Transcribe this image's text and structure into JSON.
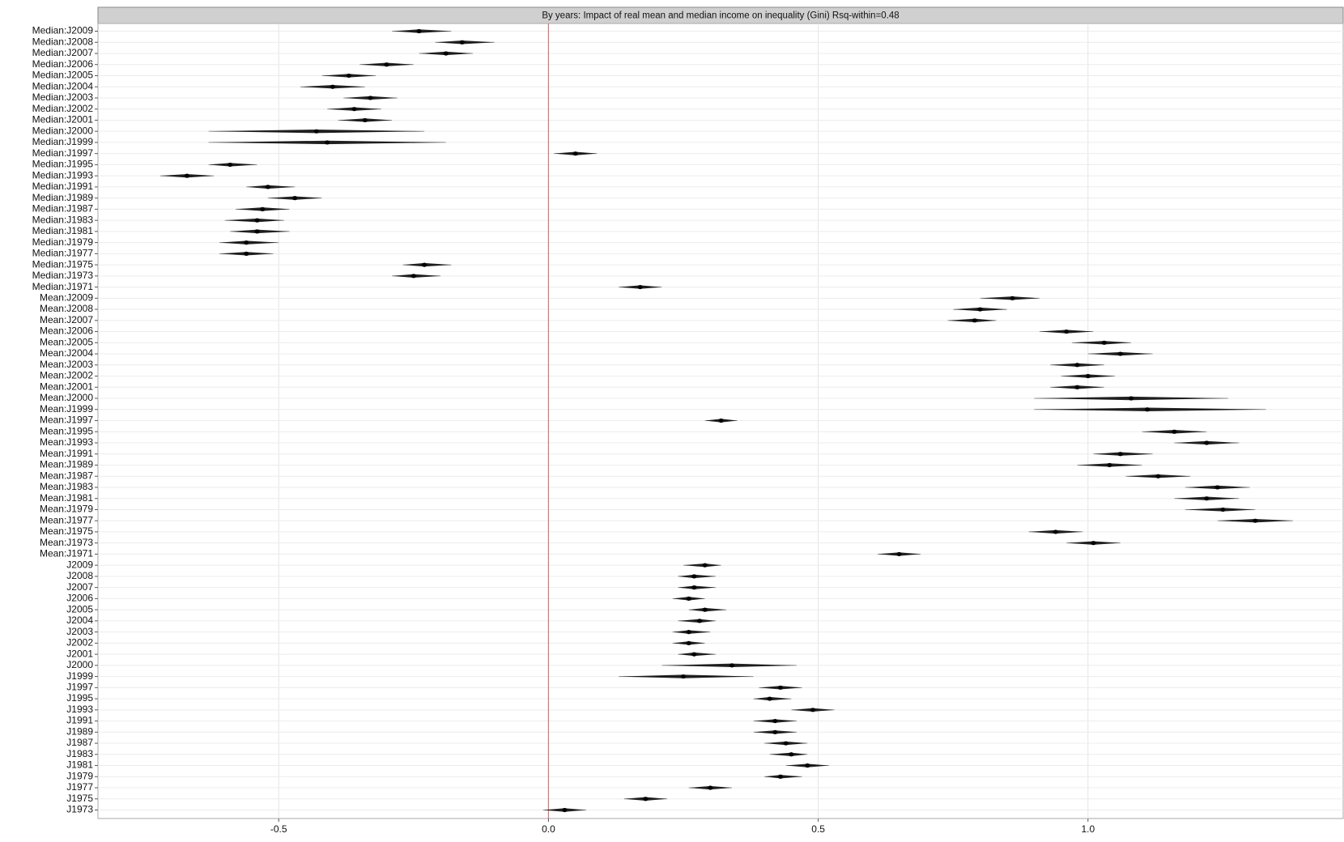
{
  "chart_data": {
    "type": "forest",
    "title": "By years: Impact of real mean and median income on inequality (Gini) Rsq-within=0.48",
    "categories": [
      "Median:J2009",
      "Median:J2008",
      "Median:J2007",
      "Median:J2006",
      "Median:J2005",
      "Median:J2004",
      "Median:J2003",
      "Median:J2002",
      "Median:J2001",
      "Median:J2000",
      "Median:J1999",
      "Median:J1997",
      "Median:J1995",
      "Median:J1993",
      "Median:J1991",
      "Median:J1989",
      "Median:J1987",
      "Median:J1983",
      "Median:J1981",
      "Median:J1979",
      "Median:J1977",
      "Median:J1975",
      "Median:J1973",
      "Median:J1971",
      "Mean:J2009",
      "Mean:J2008",
      "Mean:J2007",
      "Mean:J2006",
      "Mean:J2005",
      "Mean:J2004",
      "Mean:J2003",
      "Mean:J2002",
      "Mean:J2001",
      "Mean:J2000",
      "Mean:J1999",
      "Mean:J1997",
      "Mean:J1995",
      "Mean:J1993",
      "Mean:J1991",
      "Mean:J1989",
      "Mean:J1987",
      "Mean:J1983",
      "Mean:J1981",
      "Mean:J1979",
      "Mean:J1977",
      "Mean:J1975",
      "Mean:J1973",
      "Mean:J1971",
      "J2009",
      "J2008",
      "J2007",
      "J2006",
      "J2005",
      "J2004",
      "J2003",
      "J2002",
      "J2001",
      "J2000",
      "J1999",
      "J1997",
      "J1995",
      "J1993",
      "J1991",
      "J1989",
      "J1987",
      "J1983",
      "J1981",
      "J1979",
      "J1977",
      "J1975",
      "J1973"
    ],
    "values": [
      -0.24,
      -0.16,
      -0.19,
      -0.3,
      -0.37,
      -0.4,
      -0.33,
      -0.36,
      -0.34,
      -0.43,
      -0.41,
      0.05,
      -0.59,
      -0.67,
      -0.52,
      -0.47,
      -0.53,
      -0.54,
      -0.54,
      -0.56,
      -0.56,
      -0.23,
      -0.25,
      0.17,
      0.86,
      0.8,
      0.79,
      0.96,
      1.03,
      1.06,
      0.98,
      1.0,
      0.98,
      1.08,
      1.11,
      0.32,
      1.16,
      1.22,
      1.06,
      1.04,
      1.13,
      1.24,
      1.22,
      1.25,
      1.31,
      0.94,
      1.01,
      0.65,
      0.29,
      0.27,
      0.27,
      0.26,
      0.29,
      0.28,
      0.26,
      0.26,
      0.27,
      0.34,
      0.25,
      0.43,
      0.41,
      0.49,
      0.42,
      0.42,
      0.44,
      0.45,
      0.48,
      0.43,
      0.3,
      0.18,
      0.03
    ],
    "lower": [
      -0.29,
      -0.21,
      -0.24,
      -0.35,
      -0.42,
      -0.46,
      -0.38,
      -0.41,
      -0.39,
      -0.63,
      -0.63,
      0.01,
      -0.63,
      -0.72,
      -0.56,
      -0.52,
      -0.58,
      -0.6,
      -0.59,
      -0.61,
      -0.61,
      -0.27,
      -0.29,
      0.13,
      0.8,
      0.75,
      0.74,
      0.91,
      0.97,
      1.0,
      0.93,
      0.95,
      0.93,
      0.9,
      0.9,
      0.29,
      1.1,
      1.16,
      1.01,
      0.98,
      1.07,
      1.18,
      1.16,
      1.18,
      1.24,
      0.89,
      0.96,
      0.61,
      0.25,
      0.24,
      0.24,
      0.23,
      0.26,
      0.24,
      0.23,
      0.23,
      0.24,
      0.21,
      0.13,
      0.39,
      0.38,
      0.45,
      0.38,
      0.38,
      0.4,
      0.41,
      0.44,
      0.4,
      0.26,
      0.14,
      -0.01
    ],
    "upper": [
      -0.18,
      -0.1,
      -0.14,
      -0.25,
      -0.32,
      -0.34,
      -0.28,
      -0.31,
      -0.29,
      -0.23,
      -0.19,
      0.09,
      -0.54,
      -0.62,
      -0.47,
      -0.42,
      -0.48,
      -0.49,
      -0.48,
      -0.5,
      -0.51,
      -0.18,
      -0.2,
      0.21,
      0.91,
      0.85,
      0.83,
      1.01,
      1.08,
      1.12,
      1.03,
      1.05,
      1.03,
      1.26,
      1.33,
      0.35,
      1.22,
      1.28,
      1.12,
      1.1,
      1.19,
      1.3,
      1.28,
      1.31,
      1.38,
      0.99,
      1.06,
      0.69,
      0.32,
      0.31,
      0.31,
      0.29,
      0.33,
      0.31,
      0.3,
      0.29,
      0.31,
      0.46,
      0.38,
      0.47,
      0.45,
      0.53,
      0.46,
      0.46,
      0.48,
      0.48,
      0.52,
      0.47,
      0.34,
      0.22,
      0.07
    ],
    "color": "#000000",
    "ci_color": "#9a9a9a",
    "xlim": [
      -0.835,
      1.473
    ],
    "xticks": [
      -0.5,
      {
        "value": 0,
        "label": "0.0"
      },
      0.5,
      {
        "value": 1,
        "label": "1.0"
      }
    ],
    "refline": 0,
    "refline_color": "#c08080",
    "grid": true
  }
}
